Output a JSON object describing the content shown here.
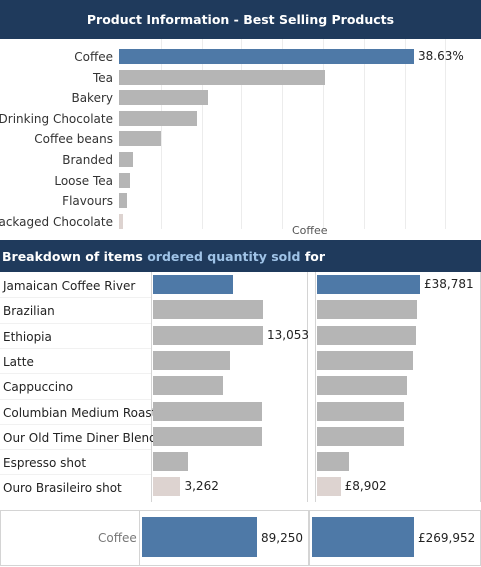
{
  "header": {
    "title": "Product Information - Best Selling Products"
  },
  "colors": {
    "highlight": "#4e79a7",
    "default": "#b5b5b5",
    "min": "#ddd3d0",
    "header_bg": "#1f3a5c",
    "header_accent": "#9fc3e7"
  },
  "category_chart": {
    "axis_caption": "Coffee",
    "items": [
      {
        "label": "Coffee",
        "value": 38.63,
        "value_label": "38.63%",
        "state": "highlight"
      },
      {
        "label": "Tea",
        "value": 27.0,
        "state": "default"
      },
      {
        "label": "Bakery",
        "value": 11.6,
        "state": "default"
      },
      {
        "label": "Drinking Chocolate",
        "value": 10.2,
        "state": "default"
      },
      {
        "label": "Coffee beans",
        "value": 5.5,
        "state": "default"
      },
      {
        "label": "Branded",
        "value": 1.8,
        "state": "default"
      },
      {
        "label": "Loose Tea",
        "value": 1.4,
        "state": "default"
      },
      {
        "label": "Flavours",
        "value": 1.0,
        "state": "default"
      },
      {
        "label": "Packaged Chocolate",
        "value": 0.5,
        "state": "min"
      }
    ]
  },
  "breakdown": {
    "title_prefix": "Breakdown of items ",
    "title_highlight": "ordered quantity sold",
    "title_suffix": " for",
    "items": [
      {
        "label": "Jamaican Coffee River",
        "qty": 9550,
        "revenue": 38781,
        "revenue_label": "£38,781",
        "state": "highlight"
      },
      {
        "label": "Brazilian",
        "qty": 13000,
        "revenue": 37500,
        "state": "default"
      },
      {
        "label": "Ethiopia",
        "qty": 13053,
        "qty_label": "13,053",
        "revenue": 37450,
        "state": "default"
      },
      {
        "label": "Latte",
        "qty": 9150,
        "revenue": 36000,
        "state": "default"
      },
      {
        "label": "Cappuccino",
        "qty": 8350,
        "revenue": 34000,
        "state": "default"
      },
      {
        "label": "Columbian Medium Roast",
        "qty": 12900,
        "revenue": 32800,
        "state": "default"
      },
      {
        "label": "Our Old Time Diner Blend",
        "qty": 12900,
        "revenue": 32800,
        "state": "default"
      },
      {
        "label": "Espresso shot",
        "qty": 4150,
        "revenue": 12100,
        "state": "default"
      },
      {
        "label": "Ouro Brasileiro shot",
        "qty": 3262,
        "qty_label": "3,262",
        "revenue": 8902,
        "revenue_label": "£8,902",
        "state": "min"
      }
    ]
  },
  "totals": {
    "label": "Coffee",
    "qty": 89250,
    "qty_label": "89,250",
    "revenue": 269952,
    "revenue_label": "£269,952"
  }
}
